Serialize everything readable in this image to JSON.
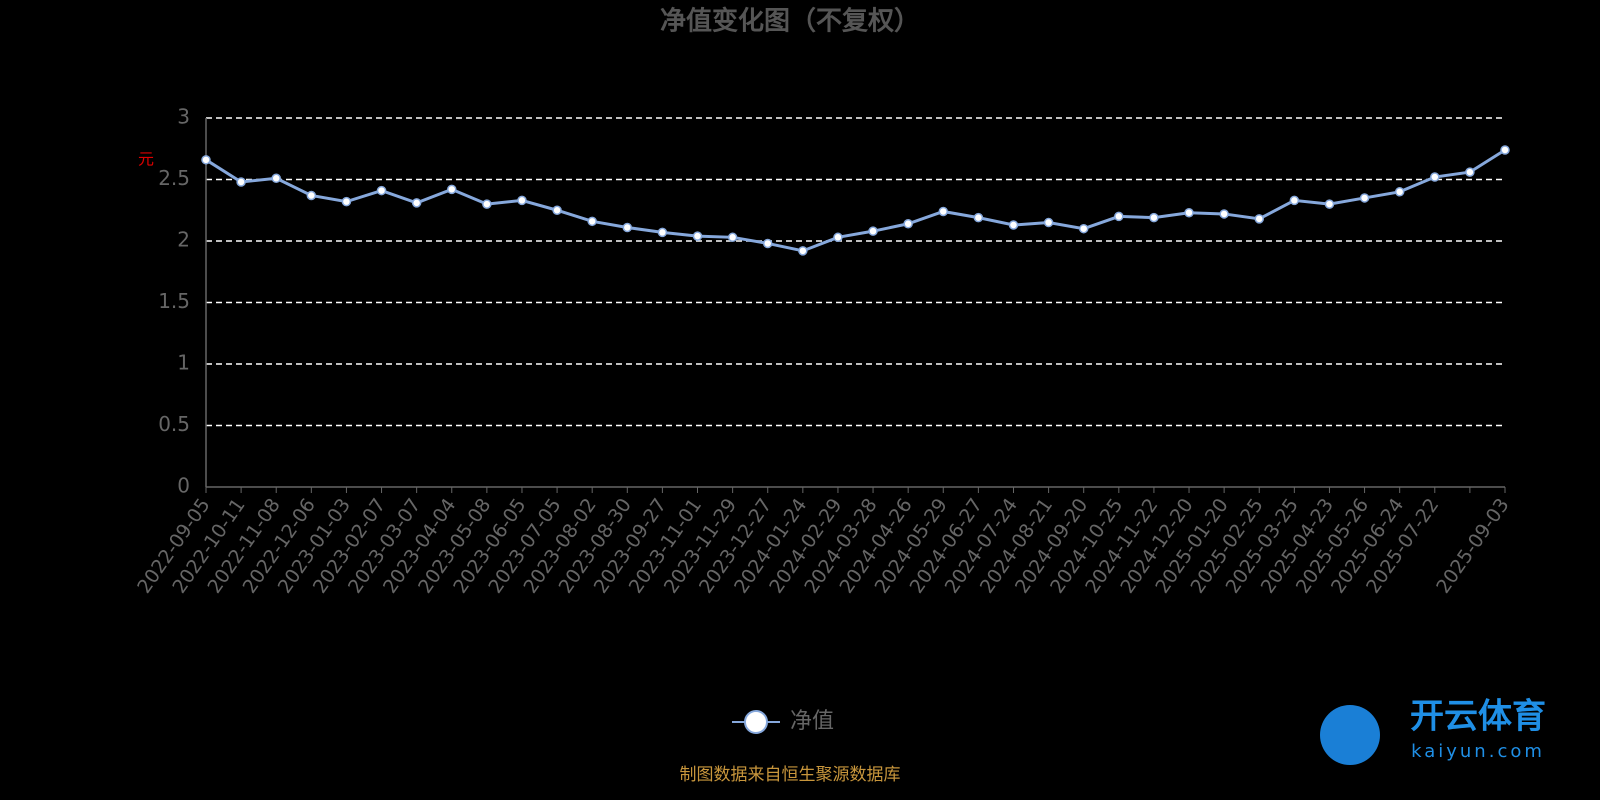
{
  "chart_data": {
    "type": "line",
    "title": "净值变化图（不复权）",
    "y_label": "元",
    "categories": [
      "2022-09-05",
      "2022-10-11",
      "2022-11-08",
      "2022-12-06",
      "2023-01-03",
      "2023-02-07",
      "2023-03-07",
      "2023-04-04",
      "2023-05-08",
      "2023-06-05",
      "2023-07-05",
      "2023-08-02",
      "2023-08-30",
      "2023-09-27",
      "2023-11-01",
      "2023-11-29",
      "2023-12-27",
      "2024-01-24",
      "2024-02-29",
      "2024-03-28",
      "2024-04-26",
      "2024-05-29",
      "2024-06-27",
      "2024-07-24",
      "2024-08-21",
      "2024-09-20",
      "2024-10-25",
      "2024-11-22",
      "2024-12-20",
      "2025-01-20",
      "2025-02-25",
      "2025-03-25",
      "2025-04-23",
      "2025-05-26",
      "2025-06-24",
      "2025-07-22",
      null,
      "2025-09-03"
    ],
    "series": [
      {
        "name": "净值",
        "color": "#86a8dc",
        "values": [
          2.66,
          2.48,
          2.51,
          2.37,
          2.32,
          2.41,
          2.31,
          2.42,
          2.3,
          2.33,
          2.25,
          2.16,
          2.11,
          2.07,
          2.04,
          2.03,
          1.98,
          1.92,
          2.03,
          2.08,
          2.14,
          2.24,
          2.19,
          2.13,
          2.15,
          2.1,
          2.2,
          2.19,
          2.23,
          2.22,
          2.18,
          2.33,
          2.3,
          2.35,
          2.4,
          2.52,
          2.56,
          2.74
        ]
      }
    ],
    "ylim": [
      0,
      3
    ],
    "yticks": [
      0,
      0.5,
      1,
      1.5,
      2,
      2.5,
      3
    ],
    "grid": true,
    "legend": "bottom",
    "source": "制图数据来自恒生聚源数据库"
  },
  "watermark": {
    "brand": "开云体育",
    "site": "kaiyun.com"
  }
}
